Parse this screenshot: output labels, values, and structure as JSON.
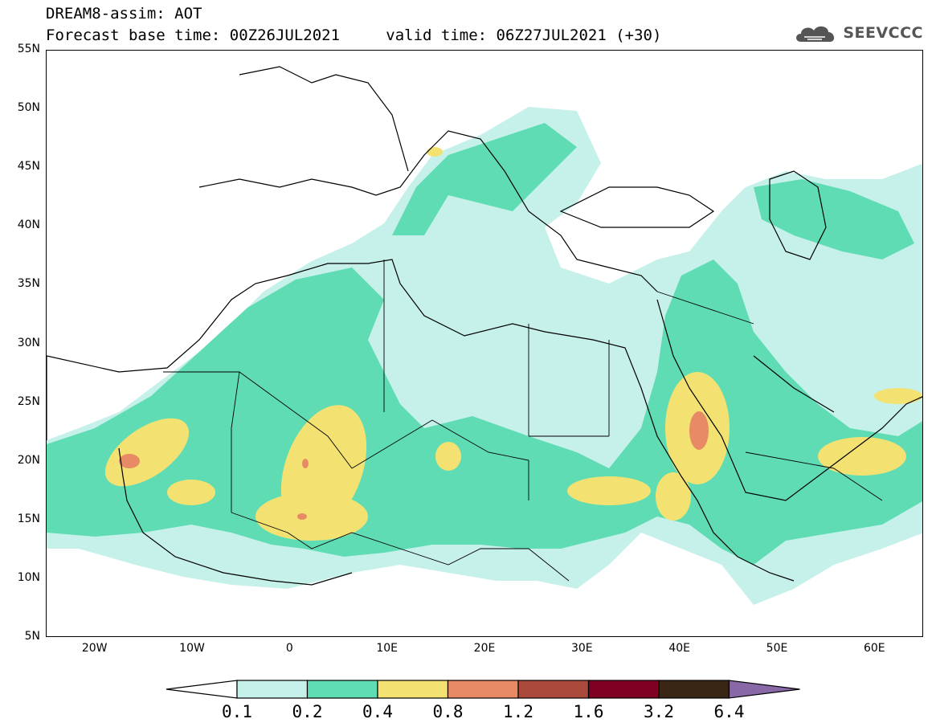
{
  "header": {
    "model_line": "DREAM8-assim: AOT",
    "base_time_label": "Forecast base time: 00Z26JUL2021",
    "valid_time_label": "valid time: 06Z27JUL2021 (+30)"
  },
  "brand": {
    "name": "SEEVCCC",
    "icon": "cloud-icon"
  },
  "map": {
    "variable": "AOT",
    "lat_labels": [
      "55N",
      "50N",
      "45N",
      "40N",
      "35N",
      "30N",
      "25N",
      "20N",
      "15N",
      "10N",
      "5N"
    ],
    "lon_labels": [
      "20W",
      "10W",
      "0",
      "10E",
      "20E",
      "30E",
      "40E",
      "50E",
      "60E"
    ],
    "lat_range": [
      5,
      55
    ],
    "lon_range": [
      -25,
      65
    ]
  },
  "legend": {
    "thresholds": [
      "0.1",
      "0.2",
      "0.4",
      "0.8",
      "1.2",
      "1.6",
      "3.2",
      "6.4"
    ],
    "colors": [
      "#c6f1ea",
      "#5fdcb4",
      "#f3e272",
      "#e98a66",
      "#a94a3c",
      "#800024",
      "#3a2615",
      "#8868a6"
    ]
  }
}
